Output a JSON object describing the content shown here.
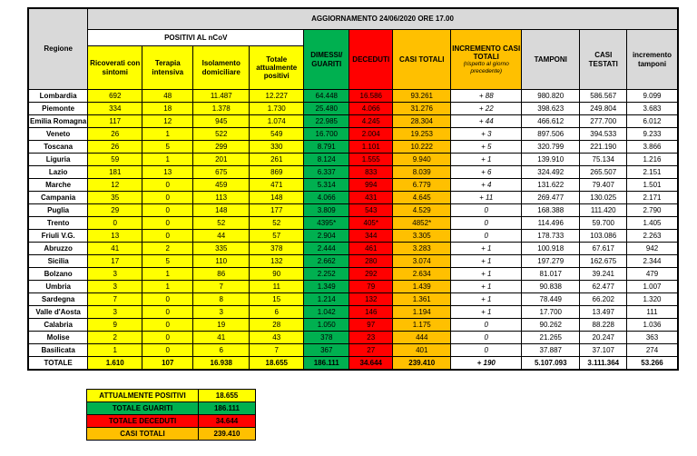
{
  "colors": {
    "yellow": "#ffff00",
    "green": "#00b050",
    "red": "#ff0000",
    "orange": "#ffc000",
    "gray": "#d9d9d9"
  },
  "header": {
    "title": "AGGIORNAMENTO 24/06/2020 ORE 17.00",
    "regione": "Regione",
    "positivi_group": "POSITIVI AL nCoV",
    "subcols": [
      "Ricoverati con sintomi",
      "Terapia intensiva",
      "Isolamento domiciliare",
      "Totale attualmente positivi"
    ],
    "dimessi_guariti": "DIMESSI/ GUARITI",
    "deceduti": "DECEDUTI",
    "casi_totali": "CASI TOTALI",
    "incremento": "INCREMENTO CASI TOTALI",
    "incremento_sub": "(rispetto al giorno precedente)",
    "tamponi": "TAMPONI",
    "casi_testati": "CASI TESTATI",
    "incremento_tamponi": "incremento tamponi"
  },
  "rows": [
    {
      "regione": "Lombardia",
      "values": [
        "692",
        "48",
        "11.487",
        "12.227",
        "64.448",
        "16.586",
        "93.261",
        "+ 88",
        "980.820",
        "586.567",
        "9.099"
      ]
    },
    {
      "regione": "Piemonte",
      "values": [
        "334",
        "18",
        "1.378",
        "1.730",
        "25.480",
        "4.066",
        "31.276",
        "+ 22",
        "398.623",
        "249.804",
        "3.683"
      ]
    },
    {
      "regione": "Emilia Romagna",
      "values": [
        "117",
        "12",
        "945",
        "1.074",
        "22.985",
        "4.245",
        "28.304",
        "+ 44",
        "466.612",
        "277.700",
        "6.012"
      ]
    },
    {
      "regione": "Veneto",
      "values": [
        "26",
        "1",
        "522",
        "549",
        "16.700",
        "2.004",
        "19.253",
        "+ 3",
        "897.506",
        "394.533",
        "9.233"
      ]
    },
    {
      "regione": "Toscana",
      "values": [
        "26",
        "5",
        "299",
        "330",
        "8.791",
        "1.101",
        "10.222",
        "+ 5",
        "320.799",
        "221.190",
        "3.866"
      ]
    },
    {
      "regione": "Liguria",
      "values": [
        "59",
        "1",
        "201",
        "261",
        "8.124",
        "1.555",
        "9.940",
        "+ 1",
        "139.910",
        "75.134",
        "1.216"
      ]
    },
    {
      "regione": "Lazio",
      "values": [
        "181",
        "13",
        "675",
        "869",
        "6.337",
        "833",
        "8.039",
        "+ 6",
        "324.492",
        "265.507",
        "2.151"
      ]
    },
    {
      "regione": "Marche",
      "values": [
        "12",
        "0",
        "459",
        "471",
        "5.314",
        "994",
        "6.779",
        "+ 4",
        "131.622",
        "79.407",
        "1.501"
      ]
    },
    {
      "regione": "Campania",
      "values": [
        "35",
        "0",
        "113",
        "148",
        "4.066",
        "431",
        "4.645",
        "+ 11",
        "269.477",
        "130.025",
        "2.171"
      ]
    },
    {
      "regione": "Puglia",
      "values": [
        "29",
        "0",
        "148",
        "177",
        "3.809",
        "543",
        "4.529",
        "0",
        "168.388",
        "111.420",
        "2.790"
      ]
    },
    {
      "regione": "Trento",
      "values": [
        "0",
        "0",
        "52",
        "52",
        "4395*",
        "405*",
        "4852*",
        "0",
        "114.496",
        "59.700",
        "1.405"
      ]
    },
    {
      "regione": "Friuli V.G.",
      "values": [
        "13",
        "0",
        "44",
        "57",
        "2.904",
        "344",
        "3.305",
        "0",
        "178.733",
        "103.086",
        "2.263"
      ]
    },
    {
      "regione": "Abruzzo",
      "values": [
        "41",
        "2",
        "335",
        "378",
        "2.444",
        "461",
        "3.283",
        "+ 1",
        "100.918",
        "67.617",
        "942"
      ]
    },
    {
      "regione": "Sicilia",
      "values": [
        "17",
        "5",
        "110",
        "132",
        "2.662",
        "280",
        "3.074",
        "+ 1",
        "197.279",
        "162.675",
        "2.344"
      ]
    },
    {
      "regione": "Bolzano",
      "values": [
        "3",
        "1",
        "86",
        "90",
        "2.252",
        "292",
        "2.634",
        "+ 1",
        "81.017",
        "39.241",
        "479"
      ]
    },
    {
      "regione": "Umbria",
      "values": [
        "3",
        "1",
        "7",
        "11",
        "1.349",
        "79",
        "1.439",
        "+ 1",
        "90.838",
        "62.477",
        "1.007"
      ]
    },
    {
      "regione": "Sardegna",
      "values": [
        "7",
        "0",
        "8",
        "15",
        "1.214",
        "132",
        "1.361",
        "+ 1",
        "78.449",
        "66.202",
        "1.320"
      ]
    },
    {
      "regione": "Valle d'Aosta",
      "values": [
        "3",
        "0",
        "3",
        "6",
        "1.042",
        "146",
        "1.194",
        "+ 1",
        "17.700",
        "13.497",
        "111"
      ]
    },
    {
      "regione": "Calabria",
      "values": [
        "9",
        "0",
        "19",
        "28",
        "1.050",
        "97",
        "1.175",
        "0",
        "90.262",
        "88.228",
        "1.036"
      ]
    },
    {
      "regione": "Molise",
      "values": [
        "2",
        "0",
        "41",
        "43",
        "378",
        "23",
        "444",
        "0",
        "21.265",
        "20.247",
        "363"
      ]
    },
    {
      "regione": "Basilicata",
      "values": [
        "1",
        "0",
        "6",
        "7",
        "367",
        "27",
        "401",
        "0",
        "37.887",
        "37.107",
        "274"
      ]
    },
    {
      "regione": "TOTALE",
      "total": true,
      "values": [
        "1.610",
        "107",
        "16.938",
        "18.655",
        "186.111",
        "34.644",
        "239.410",
        "+ 190",
        "5.107.093",
        "3.111.364",
        "53.266"
      ]
    }
  ],
  "summary": [
    {
      "label": "ATTUALMENTE POSITIVI",
      "value": "18.655"
    },
    {
      "label": "TOTALE GUARITI",
      "value": "186.111"
    },
    {
      "label": "TOTALE DECEDUTI",
      "value": "34.644"
    },
    {
      "label": "CASI TOTALI",
      "value": "239.410"
    }
  ]
}
